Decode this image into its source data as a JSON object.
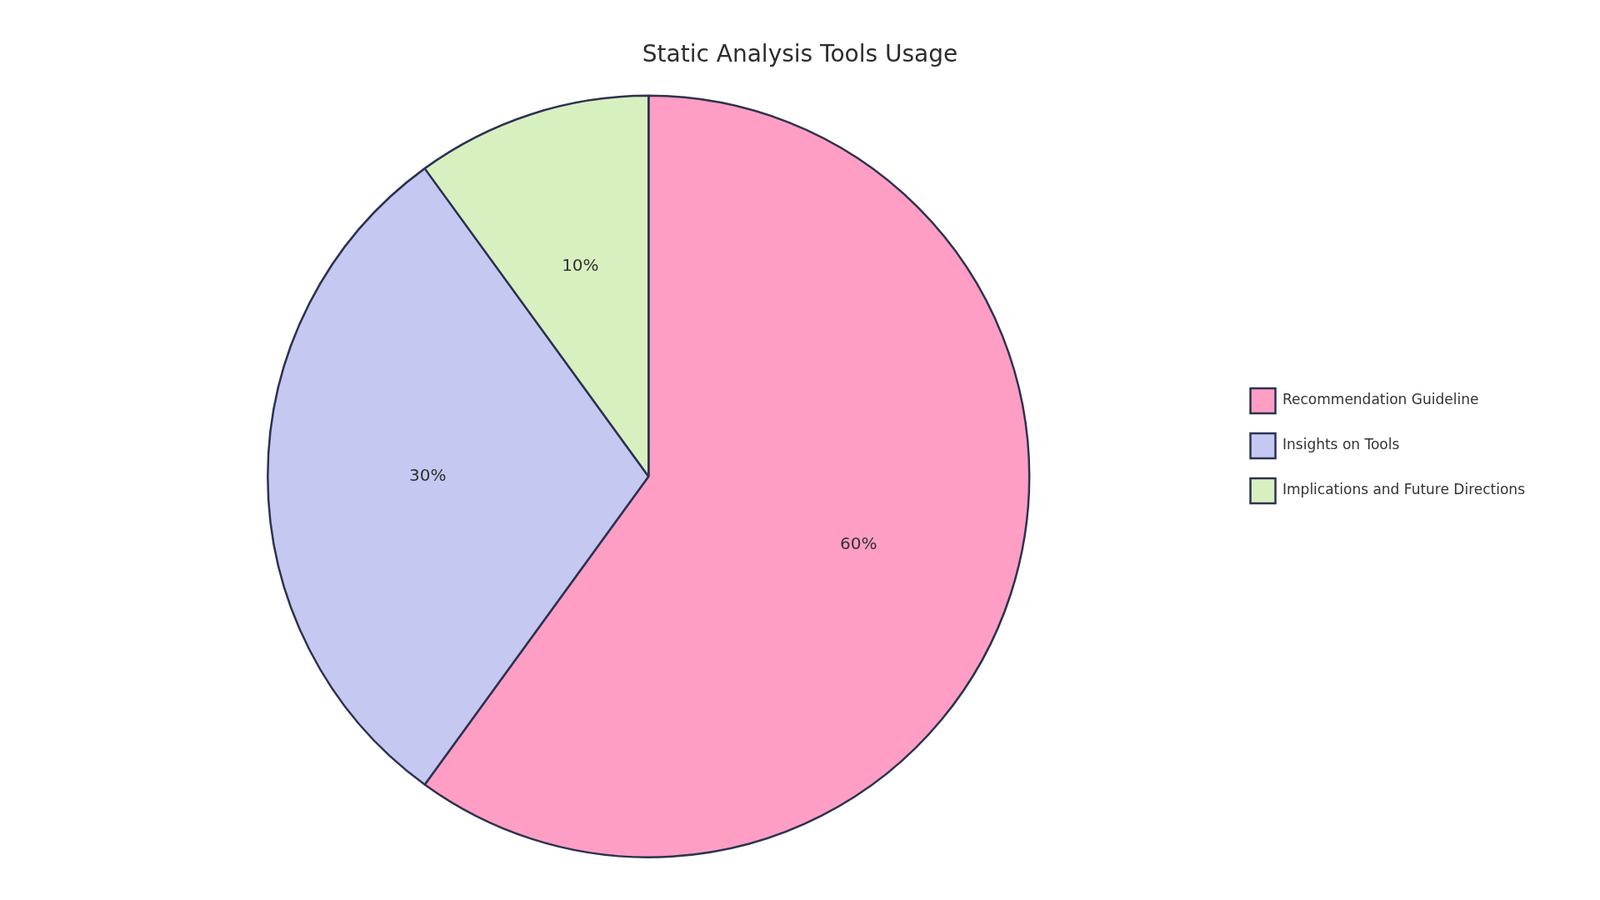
{
  "chart_data": {
    "type": "pie",
    "title": "Static Analysis Tools Usage",
    "categories": [
      "Recommendation Guideline",
      "Insights on Tools",
      "Implications and Future Directions"
    ],
    "values": [
      60,
      30,
      10
    ],
    "value_labels": [
      "60%",
      "30%",
      "10%"
    ],
    "colors": [
      "#FF9EC4",
      "#C5C8F0",
      "#D8F0C0"
    ],
    "data_labels": true,
    "legend": "right"
  }
}
